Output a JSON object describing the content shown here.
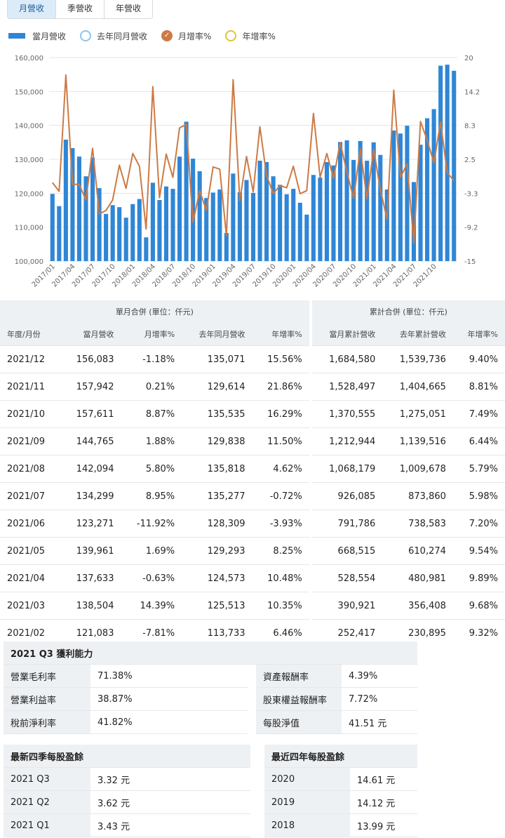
{
  "tabs": [
    "月營收",
    "季營收",
    "年營收"
  ],
  "legend": [
    {
      "label": "當月營收",
      "color": "#2f86d6"
    },
    {
      "label": "去年同月營收",
      "color": "#8cc3ec"
    },
    {
      "label": "月增率%",
      "color": "#cc7a45"
    },
    {
      "label": "年增率%",
      "color": "#e3c03a"
    }
  ],
  "chart_data": {
    "type": "bar",
    "series": [
      {
        "name": "當月營收",
        "axis": "left",
        "type": "bar",
        "color": "#2f86d6",
        "values": [
          119800,
          116200,
          135800,
          133300,
          130800,
          125000,
          130500,
          121500,
          113900,
          116500,
          115900,
          112800,
          116800,
          118300,
          107000,
          123100,
          118000,
          122000,
          121300,
          130800,
          141100,
          130200,
          126500,
          118600,
          120200,
          121100,
          108300,
          125800,
          120300,
          123900,
          120100,
          129600,
          129200,
          125000,
          122500,
          119700,
          121300,
          117200,
          113700,
          125400,
          124600,
          129200,
          128200,
          135100,
          135600,
          129800,
          135400,
          129600,
          135000,
          131300,
          121100,
          138500,
          137600,
          139900,
          123300,
          134300,
          142100,
          144800,
          157600,
          157900,
          156100
        ]
      },
      {
        "name": "月增率%",
        "axis": "right",
        "type": "line",
        "color": "#cc7a45",
        "values": [
          -1.5,
          -3.0,
          17.0,
          -1.8,
          -1.8,
          -4.5,
          4.4,
          -6.9,
          -6.3,
          -4.5,
          1.5,
          -2.5,
          3.5,
          1.3,
          -9.5,
          15.0,
          -4.1,
          3.4,
          -0.6,
          7.9,
          8.5,
          -8.3,
          -2.9,
          -6.3,
          1.2,
          0.8,
          -10.6,
          16.2,
          -4.6,
          3.0,
          -3.1,
          8.1,
          -0.3,
          -3.4,
          -2.0,
          -2.4,
          1.3,
          -3.4,
          -2.9,
          10.4,
          -0.6,
          3.5,
          -0.8,
          5.4,
          0.3,
          -4.2,
          4.3,
          -4.3,
          4.2,
          -2.7,
          -7.8,
          14.4,
          -0.6,
          1.7,
          -11.9,
          9.0,
          5.8,
          1.9,
          8.9,
          0.2,
          -1.2
        ]
      }
    ],
    "x_ticks": [
      "2017/01",
      "2017/04",
      "2017/07",
      "2017/10",
      "2018/01",
      "2018/04",
      "2018/07",
      "2018/10",
      "2019/01",
      "2019/04",
      "2019/07",
      "2019/10",
      "2020/01",
      "2020/04",
      "2020/07",
      "2020/10",
      "2021/01",
      "2021/04",
      "2021/07",
      "2021/10"
    ],
    "y_left": {
      "min": 100000,
      "max": 160000,
      "ticks": [
        "160,000",
        "150,000",
        "140,000",
        "130,000",
        "120,000",
        "110,000",
        "100,000"
      ]
    },
    "y_right": {
      "min": -15,
      "max": 20,
      "ticks": [
        "20",
        "14.2",
        "8.3",
        "2.5",
        "-3.3",
        "-9.2",
        "-15"
      ]
    },
    "grid": true
  },
  "table": {
    "group1": "單月合併 (單位：仟元)",
    "group2": "累計合併 (單位：仟元)",
    "columns": [
      "年度/月份",
      "當月營收",
      "月增率%",
      "去年同月營收",
      "年增率%",
      "當月累計營收",
      "去年累計營收",
      "年增率%"
    ],
    "rows": [
      [
        "2021/12",
        "156,083",
        "-1.18%",
        "135,071",
        "15.56%",
        "1,684,580",
        "1,539,736",
        "9.40%"
      ],
      [
        "2021/11",
        "157,942",
        "0.21%",
        "129,614",
        "21.86%",
        "1,528,497",
        "1,404,665",
        "8.81%"
      ],
      [
        "2021/10",
        "157,611",
        "8.87%",
        "135,535",
        "16.29%",
        "1,370,555",
        "1,275,051",
        "7.49%"
      ],
      [
        "2021/09",
        "144,765",
        "1.88%",
        "129,838",
        "11.50%",
        "1,212,944",
        "1,139,516",
        "6.44%"
      ],
      [
        "2021/08",
        "142,094",
        "5.80%",
        "135,818",
        "4.62%",
        "1,068,179",
        "1,009,678",
        "5.79%"
      ],
      [
        "2021/07",
        "134,299",
        "8.95%",
        "135,277",
        "-0.72%",
        "926,085",
        "873,860",
        "5.98%"
      ],
      [
        "2021/06",
        "123,271",
        "-11.92%",
        "128,309",
        "-3.93%",
        "791,786",
        "738,583",
        "7.20%"
      ],
      [
        "2021/05",
        "139,961",
        "1.69%",
        "129,293",
        "8.25%",
        "668,515",
        "610,274",
        "9.54%"
      ],
      [
        "2021/04",
        "137,633",
        "-0.63%",
        "124,573",
        "10.48%",
        "528,554",
        "480,981",
        "9.89%"
      ],
      [
        "2021/03",
        "138,504",
        "14.39%",
        "125,513",
        "10.35%",
        "390,921",
        "356,408",
        "9.68%"
      ],
      [
        "2021/02",
        "121,083",
        "-7.81%",
        "113,733",
        "6.46%",
        "252,417",
        "230,895",
        "9.32%"
      ]
    ]
  },
  "profitability": {
    "title": "2021 Q3 獲利能力",
    "left": [
      [
        "營業毛利率",
        "71.38%"
      ],
      [
        "營業利益率",
        "38.87%"
      ],
      [
        "稅前淨利率",
        "41.82%"
      ]
    ],
    "right": [
      [
        "資產報酬率",
        "4.39%"
      ],
      [
        "股東權益報酬率",
        "7.72%"
      ],
      [
        "每股淨值",
        "41.51 元"
      ]
    ]
  },
  "eps_quarters": {
    "title": "最新四季每股盈餘",
    "rows": [
      [
        "2021 Q3",
        "3.32 元"
      ],
      [
        "2021 Q2",
        "3.62 元"
      ],
      [
        "2021 Q1",
        "3.43 元"
      ]
    ]
  },
  "eps_years": {
    "title": "最近四年每股盈餘",
    "rows": [
      [
        "2020",
        "14.61 元"
      ],
      [
        "2019",
        "14.12 元"
      ],
      [
        "2018",
        "13.99 元"
      ]
    ]
  }
}
